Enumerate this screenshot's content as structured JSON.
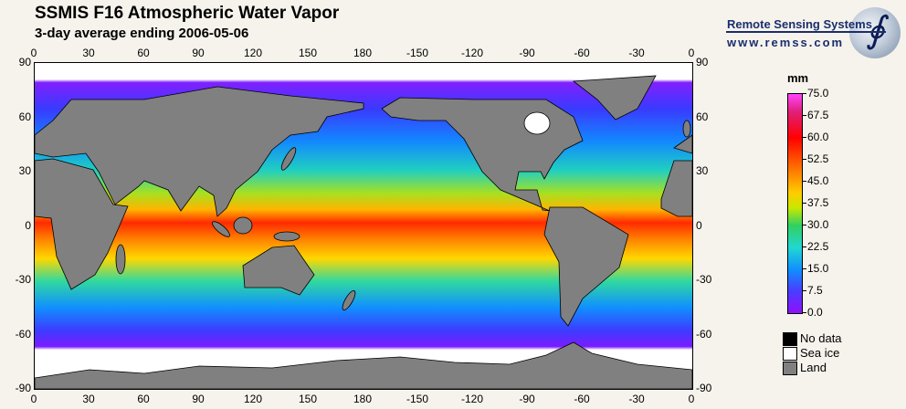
{
  "header": {
    "title": "SSMIS F16 Atmospheric Water Vapor",
    "subtitle": "3-day average ending 2006-05-06"
  },
  "logo": {
    "name": "Remote Sensing Systems",
    "url": "www.remss.com",
    "icon": "globe-integral-icon"
  },
  "axes": {
    "lon_labels": [
      "0",
      "30",
      "60",
      "90",
      "120",
      "150",
      "180",
      "-150",
      "-120",
      "-90",
      "-60",
      "-30",
      "0"
    ],
    "lat_labels": [
      "90",
      "60",
      "30",
      "0",
      "-30",
      "-60",
      "-90"
    ]
  },
  "colorbar": {
    "unit": "mm",
    "labels": [
      "75.0",
      "67.5",
      "60.0",
      "52.5",
      "45.0",
      "37.5",
      "30.0",
      "22.5",
      "15.0",
      "7.5",
      "0.0"
    ],
    "range": [
      0,
      75
    ]
  },
  "legend": [
    {
      "label": "No data",
      "color": "#000000"
    },
    {
      "label": "Sea ice",
      "color": "#ffffff"
    },
    {
      "label": "Land",
      "color": "#808080"
    }
  ]
}
